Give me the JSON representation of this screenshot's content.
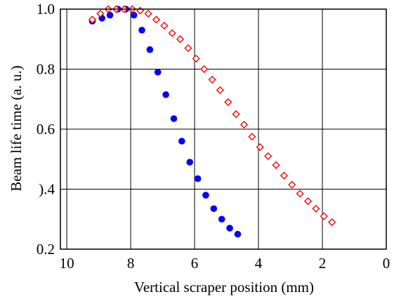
{
  "chart_data": {
    "type": "scatter",
    "xlabel": "Vertical scraper position (mm)",
    "ylabel": "Beam life time (a. u.)",
    "xlim": [
      10.2,
      0
    ],
    "ylim": [
      0.2,
      1.0
    ],
    "x_ticks": [
      10,
      8,
      6,
      4,
      2,
      0
    ],
    "x_tick_labels": [
      "10",
      "8",
      "6",
      "4",
      "2",
      "0"
    ],
    "y_ticks": [
      0.2,
      0.4,
      0.6,
      0.8,
      1.0
    ],
    "y_tick_labels": [
      "0.2",
      ").4",
      "0.6",
      "0.8",
      "1.0"
    ],
    "grid": true,
    "series": [
      {
        "marker": "filled-circle",
        "color": "#0000ff",
        "x": [
          9.2,
          8.9,
          8.65,
          8.4,
          8.15,
          7.9,
          7.65,
          7.4,
          7.15,
          6.9,
          6.65,
          6.4,
          6.15,
          5.9,
          5.65,
          5.4,
          5.15,
          4.9,
          4.65
        ],
        "y": [
          0.96,
          0.97,
          0.98,
          1.0,
          1.0,
          0.98,
          0.93,
          0.865,
          0.79,
          0.715,
          0.635,
          0.56,
          0.49,
          0.435,
          0.38,
          0.335,
          0.3,
          0.27,
          0.25
        ]
      },
      {
        "marker": "open-diamond",
        "color": "#ff0000",
        "x": [
          9.2,
          8.95,
          8.7,
          8.45,
          8.2,
          7.95,
          7.7,
          7.45,
          7.2,
          6.95,
          6.7,
          6.45,
          6.2,
          5.95,
          5.7,
          5.45,
          5.2,
          4.95,
          4.7,
          4.45,
          4.2,
          3.95,
          3.7,
          3.45,
          3.2,
          2.95,
          2.7,
          2.45,
          2.2,
          1.95,
          1.7
        ],
        "y": [
          0.965,
          0.985,
          1.0,
          1.0,
          1.0,
          1.0,
          0.995,
          0.985,
          0.965,
          0.945,
          0.92,
          0.9,
          0.87,
          0.835,
          0.8,
          0.765,
          0.73,
          0.69,
          0.65,
          0.615,
          0.575,
          0.54,
          0.51,
          0.48,
          0.445,
          0.415,
          0.385,
          0.36,
          0.335,
          0.31,
          0.29
        ]
      }
    ]
  }
}
